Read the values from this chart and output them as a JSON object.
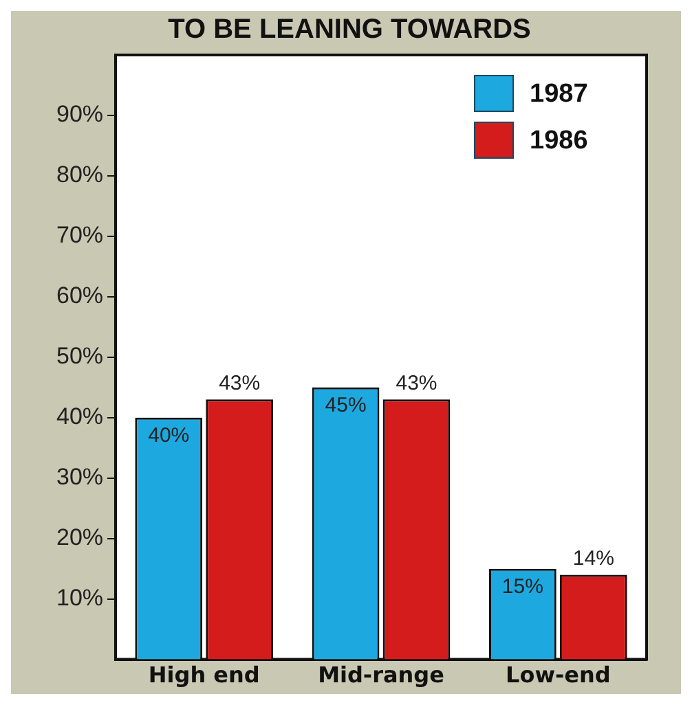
{
  "chart_data": {
    "type": "bar",
    "title": "TO BE LEANING TOWARDS",
    "categories": [
      "High end",
      "Mid-range",
      "Low-end"
    ],
    "series": [
      {
        "name": "1987",
        "color": "#1ea8e0",
        "values": [
          40,
          45,
          15
        ],
        "value_labels": [
          "40%",
          "45%",
          "15%"
        ]
      },
      {
        "name": "1986",
        "color": "#d41c1c",
        "values": [
          43,
          43,
          14
        ],
        "value_labels": [
          "43%",
          "43%",
          "14%"
        ]
      }
    ],
    "ylim": [
      0,
      100
    ],
    "yticks": [
      {
        "value": 10,
        "label": "10%"
      },
      {
        "value": 20,
        "label": "20%"
      },
      {
        "value": 30,
        "label": "30%"
      },
      {
        "value": 40,
        "label": "40%"
      },
      {
        "value": 50,
        "label": "50%"
      },
      {
        "value": 60,
        "label": "60%"
      },
      {
        "value": 70,
        "label": "70%"
      },
      {
        "value": 80,
        "label": "80%"
      },
      {
        "value": 90,
        "label": "90%"
      }
    ],
    "grid": false,
    "legend": "top right"
  }
}
